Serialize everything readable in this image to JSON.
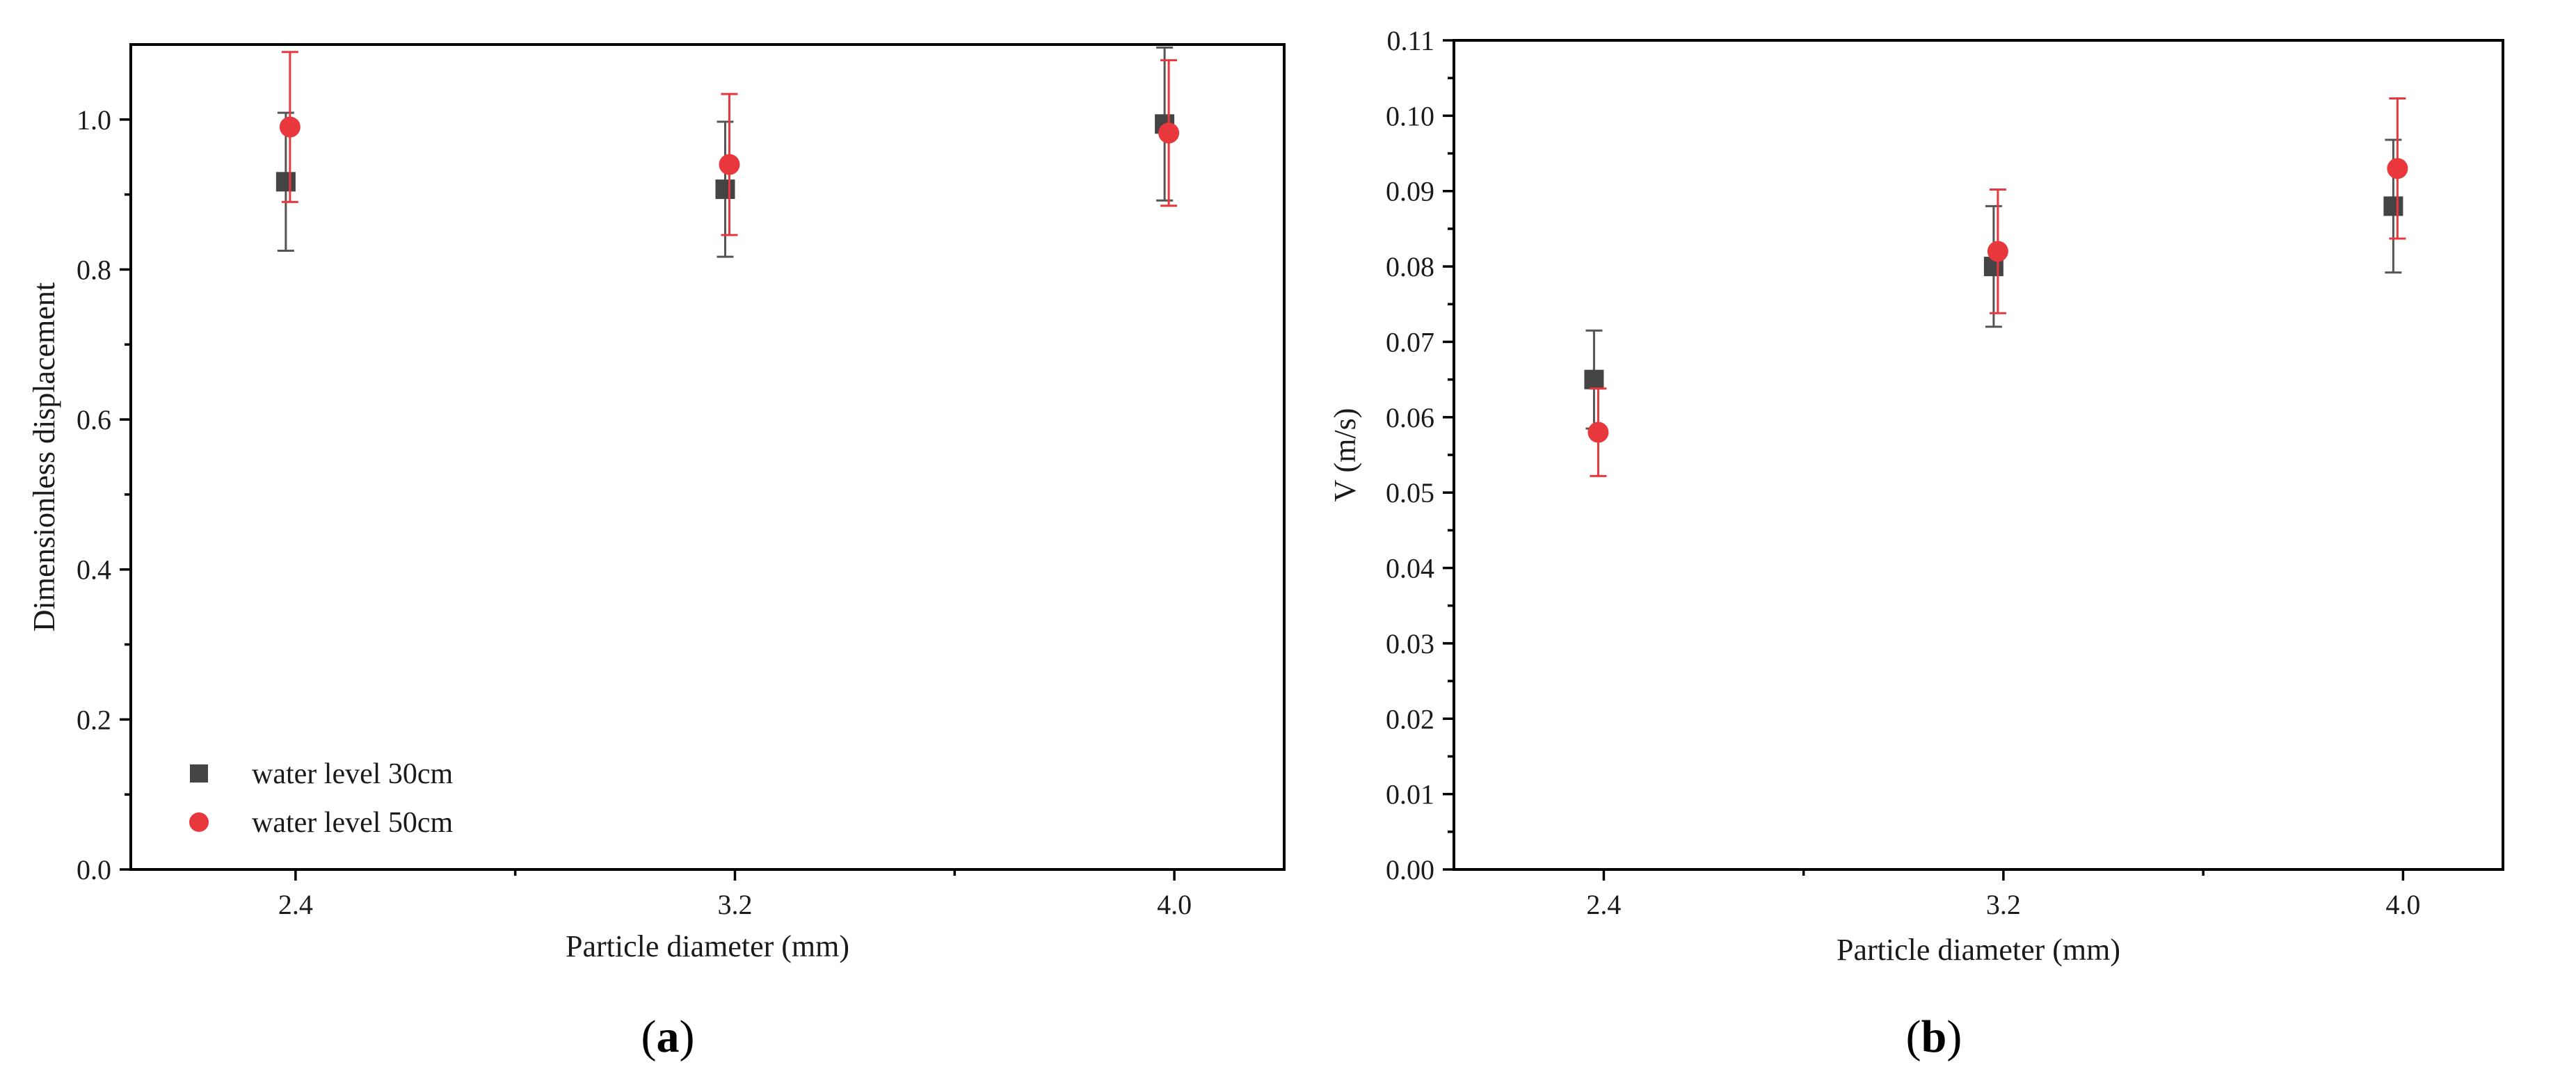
{
  "chart_data": [
    {
      "id": "a",
      "type": "scatter",
      "panel_label": "a",
      "xlabel": "Particle diameter (mm)",
      "ylabel": "Dimensionless displacement",
      "xlim": [
        2.1,
        4.2
      ],
      "ylim": [
        0.0,
        1.1
      ],
      "xticks": [
        2.4,
        3.2,
        4.0
      ],
      "xtick_labels": [
        "2.4",
        "3.2",
        "4.0"
      ],
      "yticks": [
        0.0,
        0.2,
        0.4,
        0.6,
        0.8,
        1.0
      ],
      "ytick_labels": [
        "0.0",
        "0.2",
        "0.4",
        "0.6",
        "0.8",
        "1.0"
      ],
      "legend": {
        "placement": "bottom-left"
      },
      "series": [
        {
          "name": "water level 30cm",
          "marker": "square",
          "color": "#444444",
          "error_color": "#555555",
          "points": [
            {
              "x": 2.4,
              "y": 0.917,
              "err": 0.092
            },
            {
              "x": 3.2,
              "y": 0.907,
              "err": 0.09
            },
            {
              "x": 4.0,
              "y": 0.994,
              "err": 0.102
            }
          ]
        },
        {
          "name": "water level 50cm",
          "marker": "circle",
          "color": "#e8383d",
          "error_color": "#e8383d",
          "points": [
            {
              "x": 2.4,
              "y": 0.99,
              "err": 0.1
            },
            {
              "x": 3.2,
              "y": 0.94,
              "err": 0.094
            },
            {
              "x": 4.0,
              "y": 0.982,
              "err": 0.097
            }
          ]
        }
      ]
    },
    {
      "id": "b",
      "type": "scatter",
      "panel_label": "b",
      "xlabel": "Particle diameter (mm)",
      "ylabel": "V (m/s)",
      "xlim": [
        2.1,
        4.2
      ],
      "ylim": [
        0.0,
        0.11
      ],
      "xticks": [
        2.4,
        3.2,
        4.0
      ],
      "xtick_labels": [
        "2.4",
        "3.2",
        "4.0"
      ],
      "yticks": [
        0.0,
        0.01,
        0.02,
        0.03,
        0.04,
        0.05,
        0.06,
        0.07,
        0.08,
        0.09,
        0.1,
        0.11
      ],
      "ytick_labels": [
        "0.00",
        "0.01",
        "0.02",
        "0.03",
        "0.04",
        "0.05",
        "0.06",
        "0.07",
        "0.08",
        "0.09",
        "0.10",
        "0.11"
      ],
      "series": [
        {
          "name": "water level 30cm",
          "marker": "square",
          "color": "#444444",
          "error_color": "#555555",
          "points": [
            {
              "x": 2.4,
              "y": 0.065,
              "err": 0.0065
            },
            {
              "x": 3.2,
              "y": 0.08,
              "err": 0.008
            },
            {
              "x": 4.0,
              "y": 0.088,
              "err": 0.0088
            }
          ]
        },
        {
          "name": "water level 50cm",
          "marker": "circle",
          "color": "#e8383d",
          "error_color": "#e8383d",
          "points": [
            {
              "x": 2.4,
              "y": 0.058,
              "err": 0.0058
            },
            {
              "x": 3.2,
              "y": 0.082,
              "err": 0.0082
            },
            {
              "x": 4.0,
              "y": 0.093,
              "err": 0.0093
            }
          ]
        }
      ]
    }
  ]
}
